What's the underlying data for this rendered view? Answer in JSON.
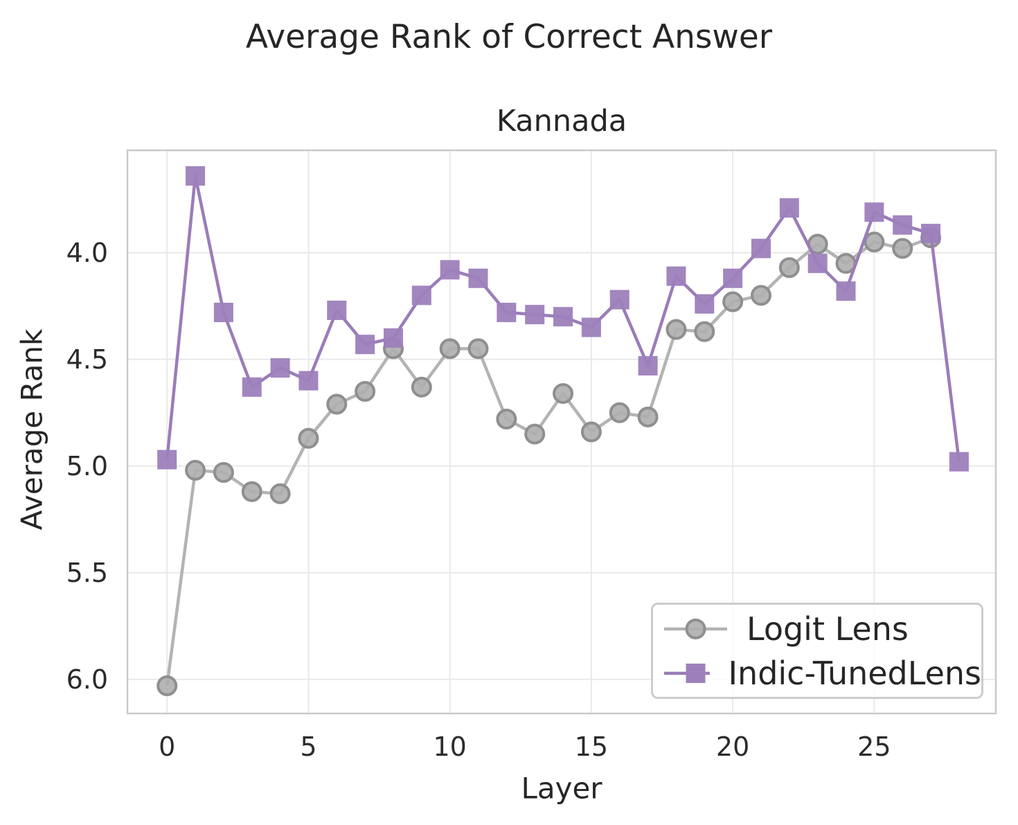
{
  "chart_data": {
    "type": "line",
    "title": "Average Rank of Correct Answer",
    "subtitle": "Kannada",
    "xlabel": "Layer",
    "ylabel": "Average Rank",
    "x": [
      0,
      1,
      2,
      3,
      4,
      5,
      6,
      7,
      8,
      9,
      10,
      11,
      12,
      13,
      14,
      15,
      16,
      17,
      18,
      19,
      20,
      21,
      22,
      23,
      24,
      25,
      26,
      27,
      28
    ],
    "series": [
      {
        "name": "Logit Lens",
        "marker": "circle",
        "line_color": "#b3b3b3",
        "marker_fill": "#aeaeae",
        "marker_edge": "#8f8f8f",
        "values": [
          6.03,
          5.02,
          5.03,
          5.12,
          5.13,
          4.87,
          4.71,
          4.65,
          4.45,
          4.63,
          4.45,
          4.45,
          4.78,
          4.85,
          4.66,
          4.84,
          4.75,
          4.77,
          4.36,
          4.37,
          4.23,
          4.2,
          4.07,
          3.96,
          4.05,
          3.95,
          3.98,
          3.93,
          null
        ]
      },
      {
        "name": "Indic-TunedLens",
        "marker": "square",
        "line_color": "#9a7db8",
        "marker_fill": "#9d80bb",
        "marker_edge": "#9d80bb",
        "values": [
          4.97,
          3.64,
          4.28,
          4.63,
          4.54,
          4.6,
          4.27,
          4.43,
          4.4,
          4.2,
          4.08,
          4.12,
          4.28,
          4.29,
          4.3,
          4.35,
          4.22,
          4.53,
          4.11,
          4.24,
          4.12,
          3.98,
          3.79,
          4.05,
          4.18,
          3.81,
          3.87,
          3.91,
          4.98
        ]
      }
    ],
    "xticks": {
      "values": [
        0,
        5,
        10,
        15,
        20,
        25
      ],
      "labels": [
        "0",
        "5",
        "10",
        "15",
        "20",
        "25"
      ]
    },
    "yticks": {
      "values": [
        4.0,
        4.5,
        5.0,
        5.5,
        6.0
      ],
      "labels": [
        "4.0",
        "4.5",
        "5.0",
        "5.5",
        "6.0"
      ]
    },
    "xlim": [
      -1.4,
      29.3
    ],
    "ylim": [
      6.16,
      3.52
    ],
    "y_axis_inverted": true,
    "grid": true,
    "legend_position": "lower right",
    "colors": {
      "spine": "#c9c9c9",
      "grid": "#e9e9e9",
      "text": "#2b2b2b"
    }
  }
}
